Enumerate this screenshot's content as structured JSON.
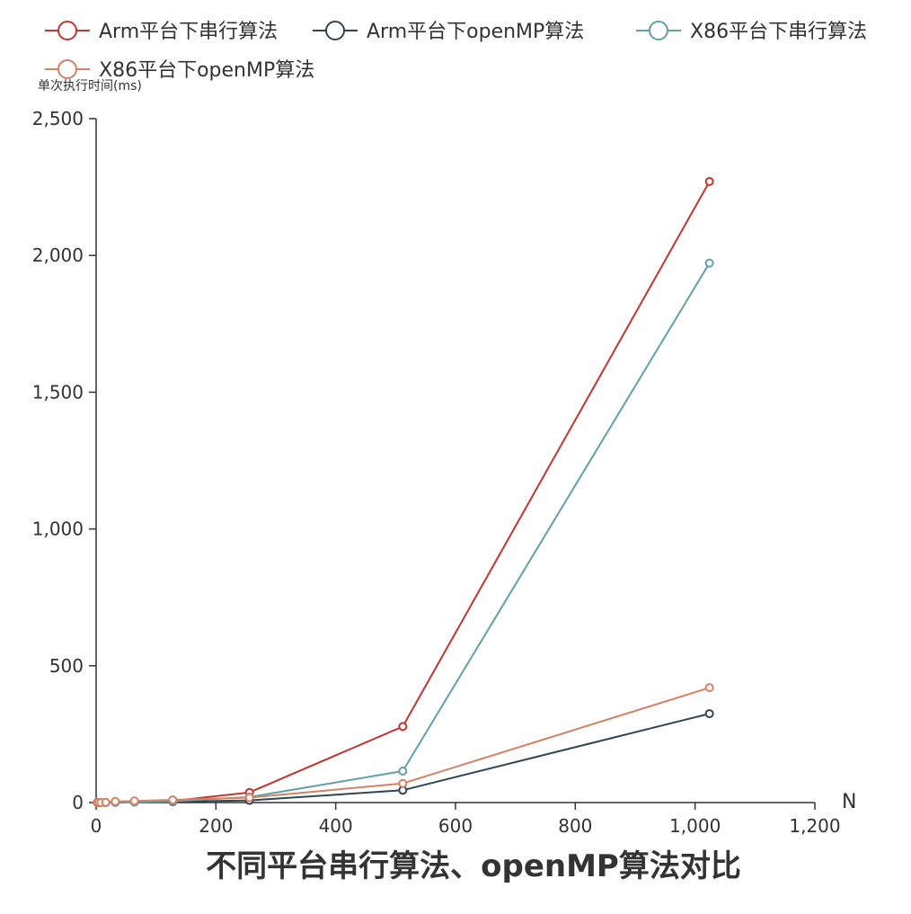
{
  "chart_data": {
    "type": "line",
    "title": "不同平台串行算法、openMP算法对比",
    "xlabel": "N",
    "ylabel": "单次执行时间(ms)",
    "xlim": [
      0,
      1200
    ],
    "ylim": [
      0,
      2500
    ],
    "x_ticks": [
      "0",
      "200",
      "400",
      "600",
      "800",
      "1,000",
      "1,200"
    ],
    "y_ticks": [
      "0",
      "500",
      "1,000",
      "1,500",
      "2,000",
      "2,500"
    ],
    "grid": false,
    "legend_position": "top",
    "series": [
      {
        "name": "Arm平台下串行算法",
        "color": "#c23531",
        "x": [
          2,
          4,
          8,
          16,
          32,
          64,
          128,
          256,
          512,
          1024
        ],
        "y": [
          0,
          0,
          0,
          0,
          1,
          3,
          6,
          37,
          278,
          2270
        ]
      },
      {
        "name": "Arm平台下openMP算法",
        "color": "#2f4554",
        "x": [
          2,
          4,
          8,
          16,
          32,
          64,
          128,
          256,
          512,
          1024
        ],
        "y": [
          0,
          0,
          0,
          0,
          1,
          2,
          3,
          8,
          45,
          325
        ]
      },
      {
        "name": "X86平台下串行算法",
        "color": "#61a0a8",
        "x": [
          2,
          4,
          8,
          16,
          32,
          64,
          128,
          256,
          512,
          1024
        ],
        "y": [
          0,
          0,
          0,
          0,
          1,
          2,
          5,
          20,
          115,
          1972
        ]
      },
      {
        "name": "X86平台下openMP算法",
        "color": "#d48265",
        "x": [
          2,
          4,
          8,
          16,
          32,
          64,
          128,
          256,
          512,
          1024
        ],
        "y": [
          0,
          0,
          0,
          1,
          4,
          6,
          10,
          18,
          70,
          420
        ]
      }
    ]
  }
}
